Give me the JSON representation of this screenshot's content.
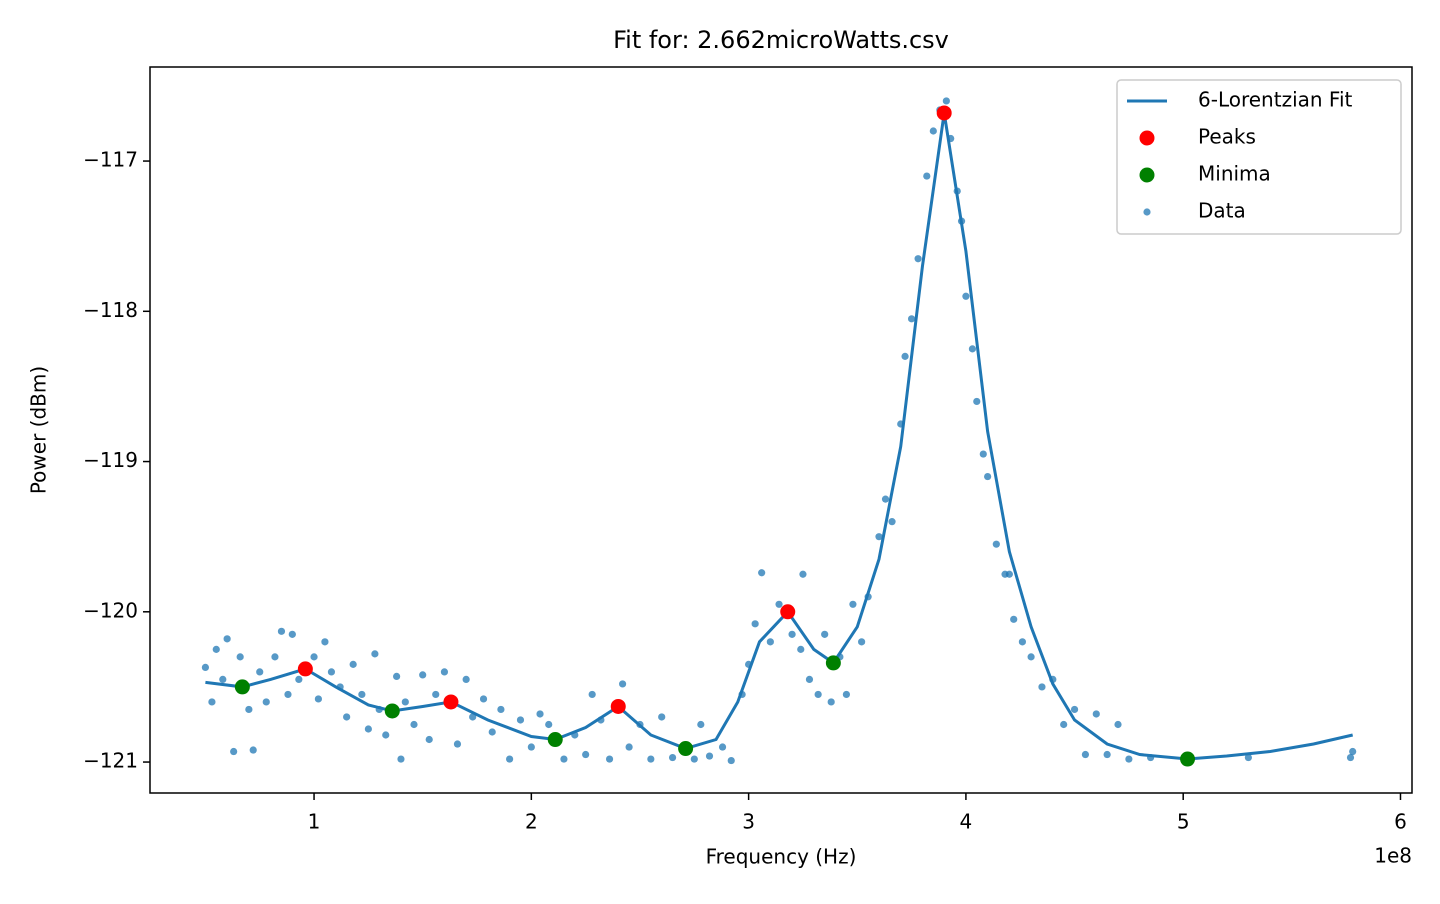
{
  "chart_data": {
    "type": "scatter",
    "title": "Fit for: 2.662microWatts.csv",
    "x_label": "Frequency (Hz)",
    "y_label": "Power (dBm)",
    "x_offset_label": "1e8",
    "xlim": [
      24500000,
      605300000
    ],
    "ylim": [
      -121.206,
      -116.374
    ],
    "xticks": [
      {
        "value": 100000000,
        "label": "1"
      },
      {
        "value": 200000000,
        "label": "2"
      },
      {
        "value": 300000000,
        "label": "3"
      },
      {
        "value": 400000000,
        "label": "4"
      },
      {
        "value": 500000000,
        "label": "5"
      },
      {
        "value": 600000000,
        "label": "6"
      }
    ],
    "yticks": [
      {
        "value": -121,
        "label": "−121"
      },
      {
        "value": -120,
        "label": "−120"
      },
      {
        "value": -119,
        "label": "−119"
      },
      {
        "value": -118,
        "label": "−118"
      },
      {
        "value": -117,
        "label": "−117"
      }
    ],
    "grid": false,
    "legend": "upper right",
    "series": [
      {
        "name": "6-Lorentzian Fit",
        "kind": "line",
        "color": "#1f77b4",
        "x": [
          50000000,
          67000000,
          80000000,
          96000000,
          110000000,
          125000000,
          136000000,
          150000000,
          163000000,
          180000000,
          200000000,
          211000000,
          225000000,
          240000000,
          255000000,
          271000000,
          285000000,
          295000000,
          305000000,
          318000000,
          330000000,
          339000000,
          350000000,
          360000000,
          370000000,
          380000000,
          390000000,
          400000000,
          410000000,
          420000000,
          430000000,
          440000000,
          450000000,
          465000000,
          480000000,
          502000000,
          520000000,
          540000000,
          560000000,
          578000000
        ],
        "values": [
          -120.47,
          -120.5,
          -120.45,
          -120.38,
          -120.5,
          -120.62,
          -120.66,
          -120.63,
          -120.6,
          -120.72,
          -120.83,
          -120.85,
          -120.77,
          -120.63,
          -120.82,
          -120.91,
          -120.85,
          -120.6,
          -120.2,
          -120.0,
          -120.25,
          -120.34,
          -120.1,
          -119.65,
          -118.9,
          -117.7,
          -116.68,
          -117.6,
          -118.8,
          -119.6,
          -120.1,
          -120.48,
          -120.72,
          -120.88,
          -120.95,
          -120.98,
          -120.96,
          -120.93,
          -120.88,
          -120.82
        ]
      },
      {
        "name": "Peaks",
        "kind": "marker",
        "color": "#ff0000",
        "x": [
          96000000,
          163000000,
          240000000,
          318000000,
          390000000
        ],
        "values": [
          -120.38,
          -120.6,
          -120.63,
          -120.0,
          -116.68
        ]
      },
      {
        "name": "Minima",
        "kind": "marker",
        "color": "#008000",
        "x": [
          67000000,
          136000000,
          211000000,
          271000000,
          339000000,
          502000000
        ],
        "values": [
          -120.5,
          -120.66,
          -120.85,
          -120.91,
          -120.34,
          -120.98
        ]
      },
      {
        "name": "Data",
        "kind": "scatter",
        "color": "#1f77b4",
        "x": [
          50000000,
          53000000,
          55000000,
          58000000,
          60000000,
          63000000,
          66000000,
          70000000,
          72000000,
          75000000,
          78000000,
          82000000,
          85000000,
          88000000,
          90000000,
          93000000,
          100000000,
          102000000,
          105000000,
          108000000,
          112000000,
          115000000,
          118000000,
          122000000,
          125000000,
          128000000,
          130000000,
          133000000,
          138000000,
          140000000,
          142000000,
          146000000,
          150000000,
          153000000,
          156000000,
          160000000,
          166000000,
          170000000,
          173000000,
          178000000,
          182000000,
          186000000,
          190000000,
          195000000,
          200000000,
          204000000,
          208000000,
          215000000,
          220000000,
          225000000,
          228000000,
          232000000,
          236000000,
          242000000,
          245000000,
          250000000,
          255000000,
          260000000,
          265000000,
          275000000,
          278000000,
          282000000,
          288000000,
          292000000,
          297000000,
          300000000,
          303000000,
          306000000,
          310000000,
          314000000,
          320000000,
          324000000,
          325000000,
          328000000,
          332000000,
          335000000,
          338000000,
          342000000,
          345000000,
          348000000,
          352000000,
          355000000,
          360000000,
          363000000,
          366000000,
          370000000,
          372000000,
          375000000,
          378000000,
          382000000,
          385000000,
          388000000,
          391000000,
          393000000,
          396000000,
          398000000,
          400000000,
          403000000,
          405000000,
          408000000,
          410000000,
          414000000,
          418000000,
          420000000,
          422000000,
          426000000,
          430000000,
          435000000,
          440000000,
          445000000,
          450000000,
          455000000,
          460000000,
          465000000,
          470000000,
          475000000,
          485000000,
          530000000,
          577000000,
          578000000
        ],
        "values": [
          -120.37,
          -120.6,
          -120.25,
          -120.45,
          -120.18,
          -120.93,
          -120.3,
          -120.65,
          -120.92,
          -120.4,
          -120.6,
          -120.3,
          -120.13,
          -120.55,
          -120.15,
          -120.45,
          -120.3,
          -120.58,
          -120.2,
          -120.4,
          -120.5,
          -120.7,
          -120.35,
          -120.55,
          -120.78,
          -120.28,
          -120.65,
          -120.82,
          -120.43,
          -120.98,
          -120.6,
          -120.75,
          -120.42,
          -120.85,
          -120.55,
          -120.4,
          -120.88,
          -120.45,
          -120.7,
          -120.58,
          -120.8,
          -120.65,
          -120.98,
          -120.72,
          -120.9,
          -120.68,
          -120.75,
          -120.98,
          -120.82,
          -120.95,
          -120.55,
          -120.72,
          -120.98,
          -120.48,
          -120.9,
          -120.75,
          -120.98,
          -120.7,
          -120.97,
          -120.98,
          -120.75,
          -120.96,
          -120.9,
          -120.99,
          -120.55,
          -120.35,
          -120.08,
          -119.74,
          -120.2,
          -119.95,
          -120.15,
          -120.25,
          -119.75,
          -120.45,
          -120.55,
          -120.15,
          -120.6,
          -120.3,
          -120.55,
          -119.95,
          -120.2,
          -119.9,
          -119.5,
          -119.25,
          -119.4,
          -118.75,
          -118.3,
          -118.05,
          -117.65,
          -117.1,
          -116.8,
          -116.66,
          -116.6,
          -116.85,
          -117.2,
          -117.4,
          -117.9,
          -118.25,
          -118.6,
          -118.95,
          -119.1,
          -119.55,
          -119.75,
          -119.75,
          -120.05,
          -120.2,
          -120.3,
          -120.5,
          -120.45,
          -120.75,
          -120.65,
          -120.95,
          -120.68,
          -120.95,
          -120.75,
          -120.98,
          -120.97,
          -120.97,
          -120.97,
          -120.93
        ]
      }
    ]
  }
}
